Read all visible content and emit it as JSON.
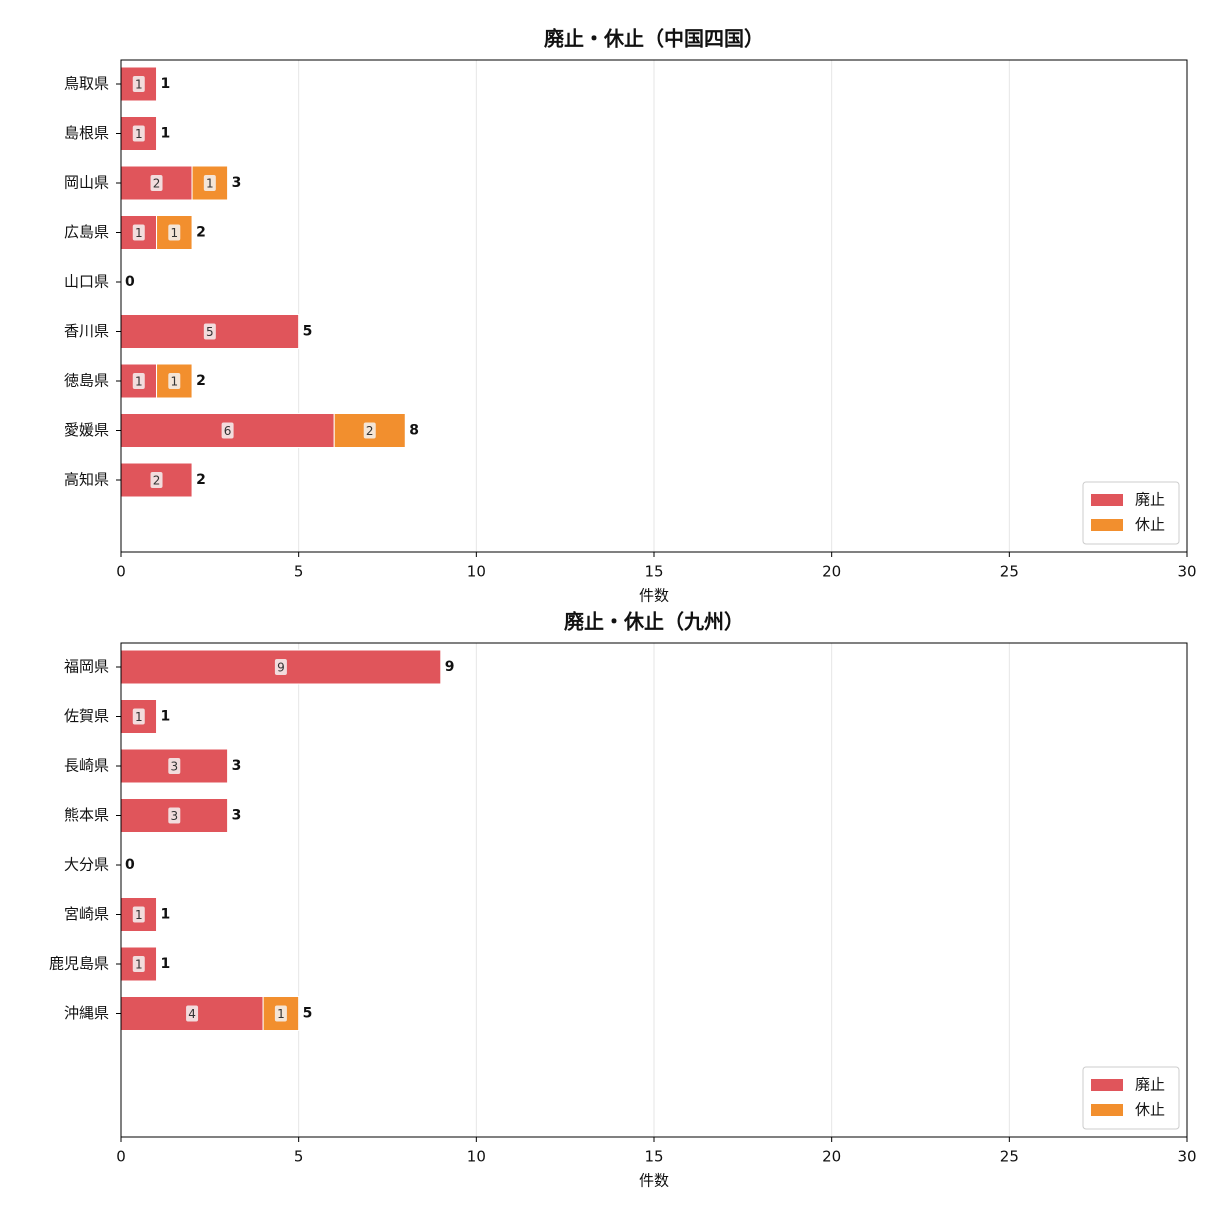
{
  "chart_data": [
    {
      "type": "stacked-barh",
      "title": "廃止・休止（中国四国）",
      "xlabel": "件数",
      "categories": [
        "鳥取県",
        "島根県",
        "岡山県",
        "広島県",
        "山口県",
        "香川県",
        "徳島県",
        "愛媛県",
        "高知県"
      ],
      "series": [
        {
          "name": "廃止",
          "color": "#e0555b",
          "values": [
            1,
            1,
            2,
            1,
            0,
            5,
            1,
            6,
            2
          ]
        },
        {
          "name": "休止",
          "color": "#f28f2e",
          "values": [
            0,
            0,
            1,
            1,
            0,
            0,
            1,
            2,
            0
          ]
        }
      ],
      "totals": [
        1,
        1,
        3,
        2,
        0,
        5,
        2,
        8,
        2
      ],
      "xlim": [
        0,
        30
      ],
      "xticks": [
        0,
        5,
        10,
        15,
        20,
        25,
        30
      ],
      "grid": true,
      "legend": "lower right"
    },
    {
      "type": "stacked-barh",
      "title": "廃止・休止（九州）",
      "xlabel": "件数",
      "categories": [
        "福岡県",
        "佐賀県",
        "長崎県",
        "熊本県",
        "大分県",
        "宮崎県",
        "鹿児島県",
        "沖縄県"
      ],
      "series": [
        {
          "name": "廃止",
          "color": "#e0555b",
          "values": [
            9,
            1,
            3,
            3,
            0,
            1,
            1,
            4
          ]
        },
        {
          "name": "休止",
          "color": "#f28f2e",
          "values": [
            0,
            0,
            0,
            0,
            0,
            0,
            0,
            1
          ]
        }
      ],
      "totals": [
        9,
        1,
        3,
        3,
        0,
        1,
        1,
        5
      ],
      "xlim": [
        0,
        30
      ],
      "xticks": [
        0,
        5,
        10,
        15,
        20,
        25,
        30
      ],
      "grid": true,
      "legend": "lower right"
    }
  ]
}
